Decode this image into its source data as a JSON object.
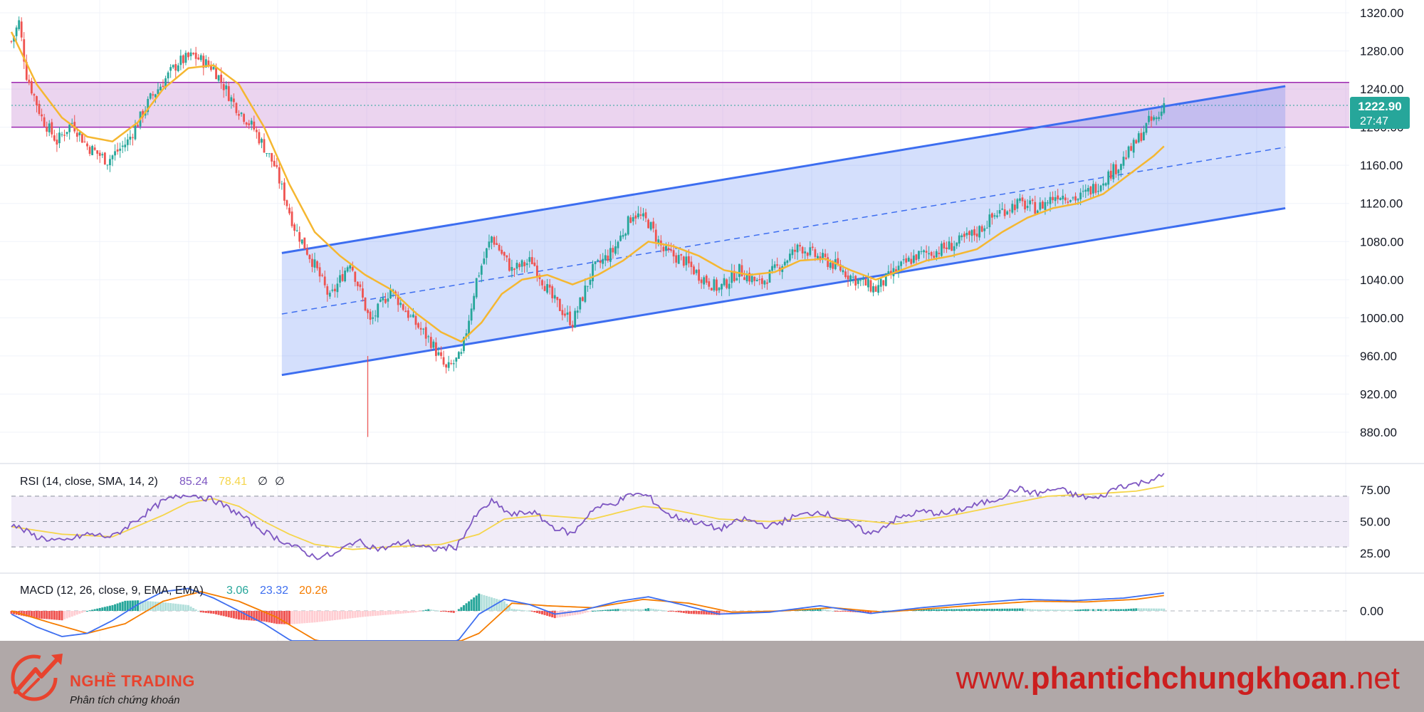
{
  "chart_data": [
    {
      "type": "candlestick",
      "title": "",
      "y_axis_ticks": [
        "1320.00",
        "1280.00",
        "1240.00",
        "1200.00",
        "1160.00",
        "1120.00",
        "1080.00",
        "1040.00",
        "1000.00",
        "960.00",
        "920.00",
        "880.00"
      ],
      "ylim": [
        860,
        1330
      ],
      "grid": true,
      "bar_count": 300,
      "price_path": [
        [
          0,
          1290
        ],
        [
          3,
          1310
        ],
        [
          6,
          1255
        ],
        [
          12,
          1210
        ],
        [
          18,
          1185
        ],
        [
          24,
          1205
        ],
        [
          30,
          1180
        ],
        [
          38,
          1165
        ],
        [
          46,
          1185
        ],
        [
          55,
          1230
        ],
        [
          66,
          1268
        ],
        [
          72,
          1275
        ],
        [
          80,
          1262
        ],
        [
          88,
          1225
        ],
        [
          96,
          1198
        ],
        [
          104,
          1160
        ],
        [
          112,
          1095
        ],
        [
          120,
          1055
        ],
        [
          126,
          1020
        ],
        [
          134,
          1060
        ],
        [
          142,
          995
        ],
        [
          150,
          1030
        ],
        [
          158,
          1000
        ],
        [
          166,
          975
        ],
        [
          172,
          945
        ],
        [
          178,
          960
        ],
        [
          184,
          1040
        ],
        [
          190,
          1085
        ],
        [
          198,
          1050
        ],
        [
          206,
          1060
        ],
        [
          214,
          1020
        ],
        [
          222,
          995
        ],
        [
          230,
          1050
        ],
        [
          238,
          1070
        ],
        [
          246,
          1110
        ],
        [
          252,
          1100
        ],
        [
          258,
          1070
        ],
        [
          266,
          1060
        ],
        [
          272,
          1045
        ],
        [
          280,
          1030
        ],
        [
          288,
          1050
        ],
        [
          296,
          1035
        ],
        [
          304,
          1055
        ],
        [
          312,
          1075
        ],
        [
          318,
          1065
        ],
        [
          326,
          1055
        ],
        [
          334,
          1040
        ],
        [
          342,
          1030
        ],
        [
          350,
          1050
        ],
        [
          358,
          1065
        ],
        [
          366,
          1070
        ],
        [
          374,
          1078
        ],
        [
          382,
          1090
        ],
        [
          390,
          1110
        ],
        [
          398,
          1120
        ],
        [
          406,
          1115
        ],
        [
          414,
          1130
        ],
        [
          422,
          1125
        ],
        [
          430,
          1140
        ],
        [
          438,
          1160
        ],
        [
          444,
          1180
        ],
        [
          450,
          1205
        ],
        [
          454,
          1210
        ],
        [
          456,
          1225
        ]
      ],
      "sma_path": [
        [
          0,
          1300
        ],
        [
          10,
          1245
        ],
        [
          20,
          1210
        ],
        [
          30,
          1190
        ],
        [
          40,
          1185
        ],
        [
          50,
          1205
        ],
        [
          60,
          1240
        ],
        [
          70,
          1262
        ],
        [
          80,
          1265
        ],
        [
          90,
          1245
        ],
        [
          100,
          1200
        ],
        [
          110,
          1140
        ],
        [
          120,
          1090
        ],
        [
          130,
          1065
        ],
        [
          140,
          1045
        ],
        [
          150,
          1030
        ],
        [
          160,
          1005
        ],
        [
          170,
          985
        ],
        [
          178,
          975
        ],
        [
          186,
          995
        ],
        [
          194,
          1025
        ],
        [
          202,
          1040
        ],
        [
          212,
          1045
        ],
        [
          222,
          1035
        ],
        [
          232,
          1045
        ],
        [
          242,
          1060
        ],
        [
          252,
          1080
        ],
        [
          262,
          1075
        ],
        [
          272,
          1065
        ],
        [
          282,
          1050
        ],
        [
          292,
          1045
        ],
        [
          302,
          1048
        ],
        [
          312,
          1060
        ],
        [
          322,
          1062
        ],
        [
          332,
          1050
        ],
        [
          342,
          1040
        ],
        [
          352,
          1050
        ],
        [
          362,
          1060
        ],
        [
          372,
          1065
        ],
        [
          382,
          1072
        ],
        [
          392,
          1090
        ],
        [
          402,
          1105
        ],
        [
          412,
          1115
        ],
        [
          422,
          1120
        ],
        [
          432,
          1130
        ],
        [
          442,
          1150
        ],
        [
          452,
          1170
        ],
        [
          456,
          1180
        ]
      ],
      "resistance_zone": [
        1200,
        1247
      ],
      "channel": {
        "upper": [
          [
            138,
            1068
          ],
          [
            535,
            1243
          ]
        ],
        "lower": [
          [
            138,
            940
          ],
          [
            535,
            1115
          ]
        ],
        "mid": [
          [
            138,
            1004
          ],
          [
            535,
            1179
          ]
        ]
      },
      "current_price": "1222.90",
      "countdown": "27:47",
      "colors": {
        "up": "#26a69a",
        "down": "#ef5350",
        "sma": "#f5b731",
        "channel": "#3d6ef0",
        "zone": "#ce93d8",
        "price_tag": "#26a69a"
      }
    },
    {
      "type": "line",
      "title": "RSI",
      "legend": {
        "label": "RSI (14, close, SMA, 14, 2)",
        "rsi": "85.24",
        "rsi_sma": "78.41",
        "extra1": "∅",
        "extra2": "∅"
      },
      "y_axis_ticks": [
        "75.00",
        "50.00",
        "25.00"
      ],
      "ylim": [
        5,
        95
      ],
      "levels": [
        70,
        50,
        30
      ],
      "rsi_path": [
        [
          0,
          48
        ],
        [
          10,
          38
        ],
        [
          20,
          34
        ],
        [
          30,
          40
        ],
        [
          40,
          38
        ],
        [
          50,
          52
        ],
        [
          60,
          66
        ],
        [
          70,
          72
        ],
        [
          80,
          67
        ],
        [
          90,
          56
        ],
        [
          100,
          42
        ],
        [
          110,
          32
        ],
        [
          120,
          22
        ],
        [
          128,
          24
        ],
        [
          136,
          35
        ],
        [
          146,
          28
        ],
        [
          156,
          34
        ],
        [
          166,
          28
        ],
        [
          176,
          30
        ],
        [
          184,
          55
        ],
        [
          190,
          66
        ],
        [
          198,
          55
        ],
        [
          206,
          58
        ],
        [
          214,
          46
        ],
        [
          222,
          40
        ],
        [
          230,
          60
        ],
        [
          238,
          64
        ],
        [
          246,
          72
        ],
        [
          252,
          70
        ],
        [
          260,
          55
        ],
        [
          270,
          50
        ],
        [
          280,
          44
        ],
        [
          290,
          52
        ],
        [
          300,
          46
        ],
        [
          310,
          54
        ],
        [
          320,
          58
        ],
        [
          330,
          50
        ],
        [
          340,
          40
        ],
        [
          350,
          52
        ],
        [
          360,
          58
        ],
        [
          370,
          56
        ],
        [
          380,
          62
        ],
        [
          390,
          68
        ],
        [
          398,
          76
        ],
        [
          406,
          72
        ],
        [
          414,
          76
        ],
        [
          422,
          70
        ],
        [
          430,
          68
        ],
        [
          438,
          78
        ],
        [
          446,
          80
        ],
        [
          452,
          84
        ],
        [
          456,
          86
        ]
      ],
      "sma_path": [
        [
          0,
          46
        ],
        [
          20,
          40
        ],
        [
          40,
          38
        ],
        [
          60,
          55
        ],
        [
          70,
          65
        ],
        [
          80,
          68
        ],
        [
          90,
          62
        ],
        [
          100,
          50
        ],
        [
          110,
          40
        ],
        [
          120,
          32
        ],
        [
          135,
          28
        ],
        [
          150,
          30
        ],
        [
          170,
          32
        ],
        [
          185,
          40
        ],
        [
          195,
          52
        ],
        [
          210,
          55
        ],
        [
          230,
          52
        ],
        [
          250,
          62
        ],
        [
          260,
          60
        ],
        [
          280,
          52
        ],
        [
          300,
          50
        ],
        [
          320,
          54
        ],
        [
          340,
          50
        ],
        [
          350,
          48
        ],
        [
          370,
          54
        ],
        [
          390,
          62
        ],
        [
          410,
          70
        ],
        [
          430,
          72
        ],
        [
          445,
          74
        ],
        [
          456,
          78
        ]
      ],
      "colors": {
        "rsi": "#7e57c2",
        "sma": "#f5d54a",
        "band": "#ede7f6"
      }
    },
    {
      "type": "bar",
      "title": "MACD",
      "legend": {
        "label": "MACD (12, 26, close, 9, EMA, EMA)",
        "hist": "3.06",
        "macd": "23.32",
        "signal": "20.26"
      },
      "y_axis_ticks": [
        "0.00"
      ],
      "zero_label": "0.00",
      "macd_path": [
        [
          0,
          -5
        ],
        [
          10,
          -25
        ],
        [
          20,
          -40
        ],
        [
          30,
          -35
        ],
        [
          40,
          -15
        ],
        [
          50,
          10
        ],
        [
          60,
          30
        ],
        [
          70,
          35
        ],
        [
          80,
          20
        ],
        [
          90,
          0
        ],
        [
          100,
          -20
        ],
        [
          110,
          -45
        ],
        [
          120,
          -65
        ],
        [
          140,
          -75
        ],
        [
          160,
          -70
        ],
        [
          175,
          -55
        ],
        [
          185,
          -5
        ],
        [
          195,
          18
        ],
        [
          205,
          10
        ],
        [
          215,
          -5
        ],
        [
          225,
          0
        ],
        [
          240,
          15
        ],
        [
          252,
          22
        ],
        [
          265,
          10
        ],
        [
          280,
          -5
        ],
        [
          300,
          -2
        ],
        [
          320,
          8
        ],
        [
          340,
          -4
        ],
        [
          360,
          5
        ],
        [
          380,
          12
        ],
        [
          400,
          18
        ],
        [
          420,
          16
        ],
        [
          440,
          20
        ],
        [
          456,
          28
        ]
      ],
      "signal_path": [
        [
          0,
          0
        ],
        [
          15,
          -18
        ],
        [
          30,
          -35
        ],
        [
          45,
          -20
        ],
        [
          60,
          15
        ],
        [
          75,
          30
        ],
        [
          90,
          15
        ],
        [
          105,
          -10
        ],
        [
          120,
          -45
        ],
        [
          140,
          -65
        ],
        [
          165,
          -68
        ],
        [
          185,
          -35
        ],
        [
          198,
          12
        ],
        [
          212,
          8
        ],
        [
          230,
          5
        ],
        [
          250,
          18
        ],
        [
          268,
          12
        ],
        [
          285,
          -2
        ],
        [
          305,
          0
        ],
        [
          325,
          5
        ],
        [
          345,
          -2
        ],
        [
          365,
          4
        ],
        [
          385,
          10
        ],
        [
          405,
          15
        ],
        [
          425,
          14
        ],
        [
          445,
          18
        ],
        [
          456,
          24
        ]
      ],
      "colors": {
        "macd": "#3d6ef0",
        "signal": "#f57c00",
        "hist_up": "#26a69a",
        "hist_up_light": "#b2dfdb",
        "hist_down": "#ef5350",
        "hist_down_light": "#ffcdd2"
      }
    }
  ],
  "footer": {
    "brand_name": "NGHỀ TRADING",
    "brand_tagline": "Phân tích chứng khoán",
    "url_prefix": "www.",
    "url_bold": "phantichchungkhoan",
    "url_suffix": ".net"
  }
}
